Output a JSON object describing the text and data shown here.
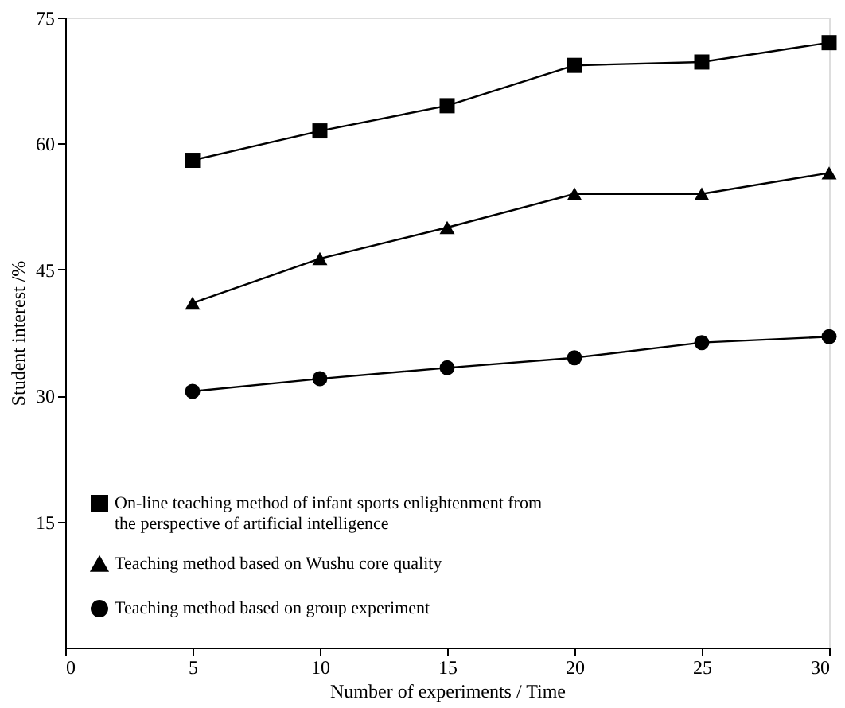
{
  "chart_data": {
    "type": "line",
    "xlabel": "Number of experiments / Time",
    "ylabel": "Student interest /%",
    "x": [
      5,
      10,
      15,
      20,
      25,
      30
    ],
    "series": [
      {
        "name": "On-line teaching method of infant sports enlightenment from the perspective of artificial intelligence",
        "color": "#000000",
        "marker": "square",
        "values": [
          58,
          61.5,
          64.5,
          69.3,
          69.7,
          72
        ]
      },
      {
        "name": "Teaching method based on Wushu core quality",
        "color": "#000000",
        "marker": "triangle",
        "values": [
          41,
          46.3,
          50,
          54,
          54,
          56.5
        ]
      },
      {
        "name": "Teaching method based on group experiment",
        "color": "#000000",
        "marker": "circle",
        "values": [
          30.5,
          32,
          33.3,
          34.5,
          36.3,
          37
        ]
      }
    ],
    "xlim": [
      0,
      30
    ],
    "xticks": [
      0,
      5,
      10,
      15,
      20,
      25,
      30
    ],
    "ylim": [
      0,
      75
    ],
    "yticks": [
      15,
      30,
      45,
      60,
      75
    ],
    "grid": false,
    "legend": "bottom left",
    "line_style": "solid"
  }
}
